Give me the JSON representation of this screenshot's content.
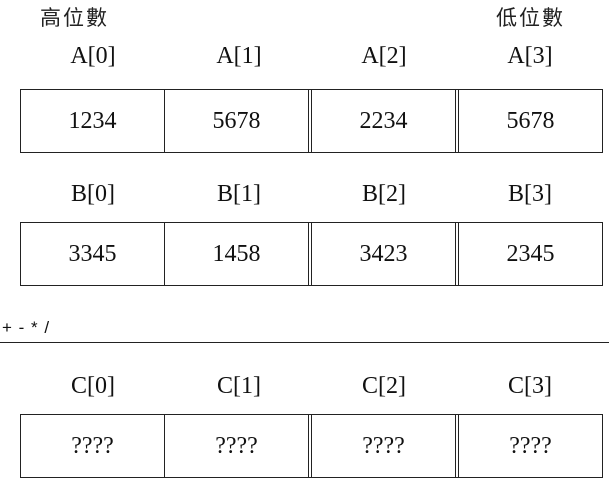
{
  "header": {
    "high_label": "高位數",
    "low_label": "低位數"
  },
  "array_a": {
    "labels": [
      "A[0]",
      "A[1]",
      "A[2]",
      "A[3]"
    ],
    "values": [
      "1234",
      "5678",
      "2234",
      "5678"
    ]
  },
  "array_b": {
    "labels": [
      "B[0]",
      "B[1]",
      "B[2]",
      "B[3]"
    ],
    "values": [
      "3345",
      "1458",
      "3423",
      "2345"
    ]
  },
  "operators": "+ - * /",
  "array_c": {
    "labels": [
      "C[0]",
      "C[1]",
      "C[2]",
      "C[3]"
    ],
    "values": [
      "????",
      "????",
      "????",
      "????"
    ]
  }
}
